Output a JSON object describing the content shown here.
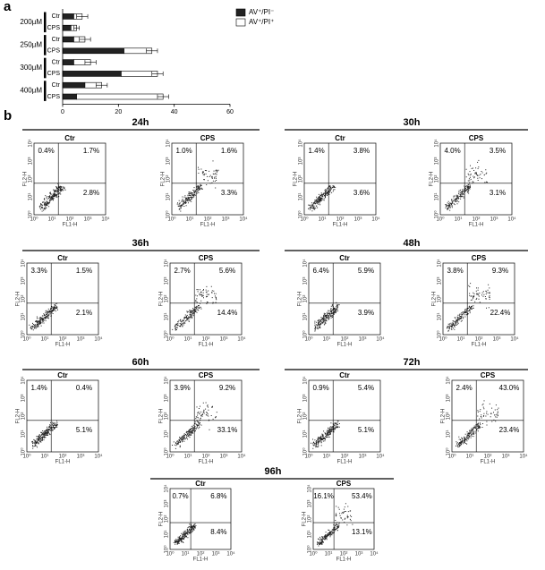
{
  "panel_labels": [
    "a",
    "b"
  ],
  "chart_data": {
    "type": "bar",
    "orientation": "horizontal",
    "stacked": true,
    "groups": [
      "200µM",
      "250µM",
      "300µM",
      "400µM"
    ],
    "categories": [
      "Ctr",
      "CPS",
      "Ctr",
      "CPS",
      "Ctr",
      "CPS",
      "Ctr",
      "CPS"
    ],
    "series": [
      {
        "name": "AV⁺/PI⁻",
        "color": "#222222",
        "values": [
          4,
          3,
          4,
          22,
          4,
          21,
          8,
          5
        ]
      },
      {
        "name": "AV⁺/PI⁺",
        "color": "#ffffff",
        "values": [
          3,
          2,
          4,
          10,
          6,
          13,
          6,
          31
        ],
        "errors": [
          2,
          1,
          2,
          2,
          2,
          2,
          2,
          2
        ]
      }
    ],
    "xlim": [
      0,
      60
    ],
    "xticks": [
      0,
      20,
      40,
      60
    ],
    "legend": "upper right"
  },
  "flow_cytometry": {
    "x_label": "FL1-H",
    "y_label": "FL2-H",
    "tick_labels": [
      "10⁰",
      "10¹",
      "10²",
      "10³",
      "10⁴"
    ],
    "timepoints": [
      {
        "label": "24h",
        "plots": [
          {
            "label": "Ctr",
            "quadrants": [
              "0.4%",
              "1.7%",
              "2.8%"
            ]
          },
          {
            "label": "CPS",
            "quadrants": [
              "1.0%",
              "1.6%",
              "3.3%"
            ]
          }
        ]
      },
      {
        "label": "30h",
        "plots": [
          {
            "label": "Ctr",
            "quadrants": [
              "1.4%",
              "3.8%",
              "3.6%"
            ]
          },
          {
            "label": "CPS",
            "quadrants": [
              "4.0%",
              "3.5%",
              "3.1%"
            ]
          }
        ]
      },
      {
        "label": "36h",
        "plots": [
          {
            "label": "Ctr",
            "quadrants": [
              "3.3%",
              "1.5%",
              "2.1%"
            ]
          },
          {
            "label": "CPS",
            "quadrants": [
              "2.7%",
              "5.6%",
              "14.4%"
            ]
          }
        ]
      },
      {
        "label": "48h",
        "plots": [
          {
            "label": "Ctr",
            "quadrants": [
              "6.4%",
              "5.9%",
              "3.9%"
            ]
          },
          {
            "label": "CPS",
            "quadrants": [
              "3.8%",
              "9.3%",
              "22.4%"
            ]
          }
        ]
      },
      {
        "label": "60h",
        "plots": [
          {
            "label": "Ctr",
            "quadrants": [
              "1.4%",
              "0.4%",
              "5.1%"
            ]
          },
          {
            "label": "CPS",
            "quadrants": [
              "3.9%",
              "9.2%",
              "33.1%"
            ]
          }
        ]
      },
      {
        "label": "72h",
        "plots": [
          {
            "label": "Ctr",
            "quadrants": [
              "0.9%",
              "5.4%",
              "5.1%"
            ]
          },
          {
            "label": "CPS",
            "quadrants": [
              "2.4%",
              "43.0%",
              "23.4%"
            ]
          }
        ]
      },
      {
        "label": "96h",
        "plots": [
          {
            "label": "Ctr",
            "quadrants": [
              "0.7%",
              "6.8%",
              "8.4%"
            ]
          },
          {
            "label": "CPS",
            "quadrants": [
              "16.1%",
              "53.4%",
              "13.1%"
            ]
          }
        ]
      }
    ]
  }
}
